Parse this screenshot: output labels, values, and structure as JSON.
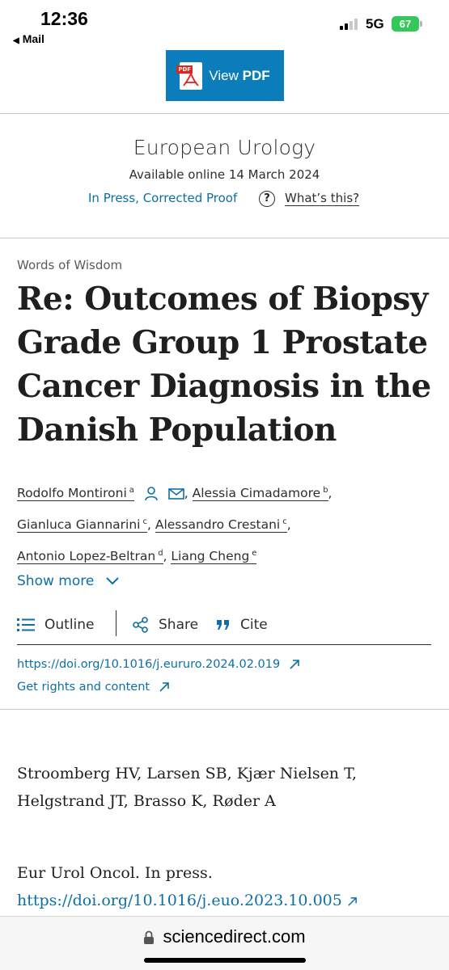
{
  "status_bar": {
    "time": "12:36",
    "back_app": "Mail",
    "network": "5G",
    "battery": "67"
  },
  "header": {
    "pdf_button_prefix": "View",
    "pdf_button_bold": "PDF",
    "pdf_icon_tag": "PDF"
  },
  "journal": {
    "name": "European Urology",
    "available": "Available online 14 March 2024",
    "status_link": "In Press, Corrected Proof",
    "whats_this": "What’s this?"
  },
  "article": {
    "type": "Words of Wisdom",
    "title": "Re: Outcomes of Biopsy Grade Group 1 Prostate Cancer Diagnosis in the Danish Population",
    "authors": [
      {
        "name": "Rodolfo Montironi",
        "sup": "a"
      },
      {
        "name": "Alessia Cimadamore",
        "sup": "b"
      },
      {
        "name": "Gianluca Giannarini",
        "sup": "c"
      },
      {
        "name": "Alessandro Crestani",
        "sup": "c"
      },
      {
        "name": "Antonio Lopez-Beltran",
        "sup": "d"
      },
      {
        "name": "Liang Cheng",
        "sup": "e"
      }
    ],
    "show_more": "Show more"
  },
  "actions": {
    "outline": "Outline",
    "share": "Share",
    "cite": "Cite"
  },
  "links": {
    "doi": "https://doi.org/10.1016/j.eururo.2024.02.019",
    "rights": "Get rights and content"
  },
  "reference": {
    "authors": "Stroomberg HV, Larsen SB, Kjær Nielsen T, Helgstrand JT, Brasso K, Røder A",
    "journal": "Eur Urol Oncol. In press.",
    "doi": "https://doi.org/10.1016/j.euo.2023.10.005"
  },
  "browser": {
    "url": "sciencedirect.com"
  },
  "colors": {
    "accent": "#0c7dbb",
    "link": "#0c6fa6",
    "battery": "#34c759"
  }
}
